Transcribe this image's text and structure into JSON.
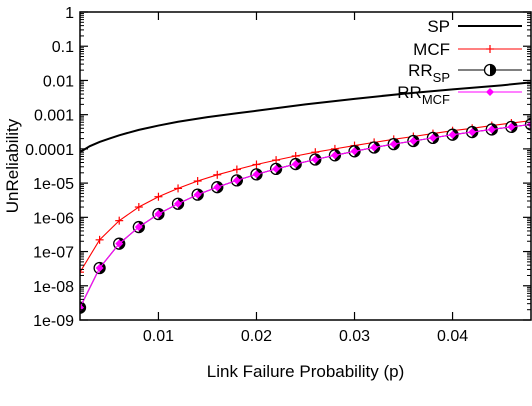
{
  "chart_data": {
    "type": "line",
    "xlabel": "Link Failure Probability (p)",
    "ylabel": "UnReliability",
    "y_scale": "log",
    "xlim": [
      0.002,
      0.048
    ],
    "ylim": [
      1e-09,
      1
    ],
    "x_ticks": [
      0.01,
      0.02,
      0.03,
      0.04
    ],
    "x_tick_labels": [
      "0.01",
      "0.02",
      "0.03",
      "0.04"
    ],
    "y_ticks": [
      1e-09,
      1e-08,
      1e-07,
      1e-06,
      1e-05,
      0.0001,
      0.001,
      0.01,
      0.1,
      1
    ],
    "y_tick_labels": [
      "1e-09",
      "1e-08",
      "1e-07",
      "1e-06",
      "1e-05",
      "0.0001",
      "0.001",
      "0.01",
      "0.1",
      "1"
    ],
    "grid": false,
    "legend_position": "top-right",
    "series": [
      {
        "name": "SP",
        "label_main": "SP",
        "label_sub": "",
        "color": "#000000",
        "marker": "none",
        "x": [
          0.002,
          0.003,
          0.004,
          0.005,
          0.006,
          0.008,
          0.01,
          0.012,
          0.015,
          0.018,
          0.02,
          0.025,
          0.03,
          0.035,
          0.04,
          0.045,
          0.048
        ],
        "y": [
          8e-05,
          0.00012,
          0.00016,
          0.0002,
          0.00025,
          0.00036,
          0.00048,
          0.00062,
          0.00085,
          0.0011,
          0.0013,
          0.002,
          0.0029,
          0.0041,
          0.0055,
          0.0072,
          0.0088
        ]
      },
      {
        "name": "MCF",
        "label_main": "MCF",
        "label_sub": "",
        "color": "#ff0000",
        "marker": "plus",
        "x": [
          0.002,
          0.004,
          0.006,
          0.008,
          0.01,
          0.012,
          0.014,
          0.016,
          0.018,
          0.02,
          0.022,
          0.024,
          0.026,
          0.028,
          0.03,
          0.032,
          0.034,
          0.036,
          0.038,
          0.04,
          0.042,
          0.044,
          0.046,
          0.048
        ],
        "y": [
          2.5e-08,
          2.2e-07,
          8e-07,
          2e-06,
          4e-06,
          7e-06,
          1.15e-05,
          1.75e-05,
          2.5e-05,
          3.5e-05,
          4.7e-05,
          6.2e-05,
          8e-05,
          0.0001,
          0.000125,
          0.000155,
          0.00019,
          0.00023,
          0.00028,
          0.00034,
          0.0004,
          0.00048,
          0.00057,
          0.00067
        ]
      },
      {
        "name": "RR_SP",
        "label_main": "RR",
        "label_sub": "SP",
        "color": "#000000",
        "marker": "half-filled-circle",
        "x": [
          0.002,
          0.004,
          0.006,
          0.008,
          0.01,
          0.012,
          0.014,
          0.016,
          0.018,
          0.02,
          0.022,
          0.024,
          0.026,
          0.028,
          0.03,
          0.032,
          0.034,
          0.036,
          0.038,
          0.04,
          0.042,
          0.044,
          0.046,
          0.048
        ],
        "y": [
          2.3e-09,
          3.3e-08,
          1.7e-07,
          5.2e-07,
          1.25e-06,
          2.5e-06,
          4.6e-06,
          7.6e-06,
          1.2e-05,
          1.8e-05,
          2.6e-05,
          3.6e-05,
          4.9e-05,
          6.5e-05,
          8.5e-05,
          0.00011,
          0.000138,
          0.00017,
          0.00021,
          0.00026,
          0.00031,
          0.00037,
          0.00044,
          0.00052
        ]
      },
      {
        "name": "RR_MCF",
        "label_main": "RR",
        "label_sub": "MCF",
        "color": "#ff00ff",
        "marker": "diamond",
        "x": [
          0.002,
          0.004,
          0.006,
          0.008,
          0.01,
          0.012,
          0.014,
          0.016,
          0.018,
          0.02,
          0.022,
          0.024,
          0.026,
          0.028,
          0.03,
          0.032,
          0.034,
          0.036,
          0.038,
          0.04,
          0.042,
          0.044,
          0.046,
          0.048
        ],
        "y": [
          2.3e-09,
          3.3e-08,
          1.7e-07,
          5.2e-07,
          1.25e-06,
          2.5e-06,
          4.6e-06,
          7.6e-06,
          1.2e-05,
          1.8e-05,
          2.6e-05,
          3.6e-05,
          4.9e-05,
          6.5e-05,
          8.5e-05,
          0.00011,
          0.000138,
          0.00017,
          0.00021,
          0.00026,
          0.00031,
          0.00037,
          0.00044,
          0.00052
        ]
      }
    ]
  }
}
